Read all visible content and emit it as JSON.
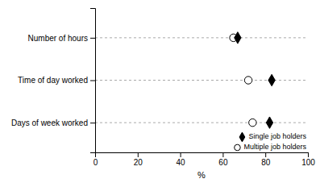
{
  "chart_data": {
    "type": "dot",
    "orientation": "horizontal",
    "xlabel": "%",
    "categories": [
      "Number of hours",
      "Time of day worked",
      "Days of week worked"
    ],
    "series": [
      {
        "name": "Single job holders",
        "color": "black",
        "marker": "diamond",
        "values": [
          67,
          83,
          82
        ]
      },
      {
        "name": "Multiple job holders",
        "color": "white",
        "marker": "circle",
        "values": [
          65,
          72,
          74
        ]
      }
    ],
    "xlim": [
      0,
      100
    ],
    "xticks": [
      0,
      20,
      40,
      60,
      80,
      100
    ],
    "grid": true,
    "legend": "lower right"
  }
}
